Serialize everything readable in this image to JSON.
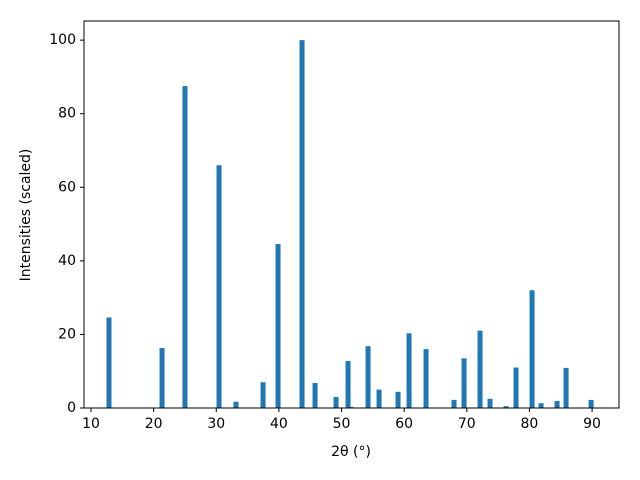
{
  "chart_data": {
    "type": "bar",
    "xlabel": "2θ (°)",
    "ylabel": "Intensities (scaled)",
    "color": "#1f77b4",
    "x": [
      12.87,
      21.34,
      25.0,
      30.44,
      33.15,
      37.47,
      39.86,
      43.69,
      45.77,
      49.12,
      51.04,
      51.5,
      54.23,
      55.99,
      59.02,
      60.78,
      63.49,
      67.96,
      69.56,
      72.11,
      73.71,
      76.27,
      77.86,
      80.42,
      81.86,
      84.41,
      85.85,
      89.84
    ],
    "values": [
      24.6,
      16.3,
      87.5,
      66,
      1.7,
      7,
      44.6,
      100,
      6.8,
      3.0,
      12.8,
      0.3,
      16.8,
      5,
      4.4,
      20.3,
      16,
      2.2,
      13.5,
      21,
      2.5,
      0.5,
      11,
      32,
      1.3,
      1.9,
      10.9,
      2.2
    ],
    "xlim": [
      8.88,
      94.3
    ],
    "ylim": [
      0,
      105.2
    ],
    "xticks": [
      10,
      20,
      30,
      40,
      50,
      60,
      70,
      80,
      90
    ],
    "yticks": [
      0,
      20,
      40,
      60,
      80,
      100
    ]
  }
}
